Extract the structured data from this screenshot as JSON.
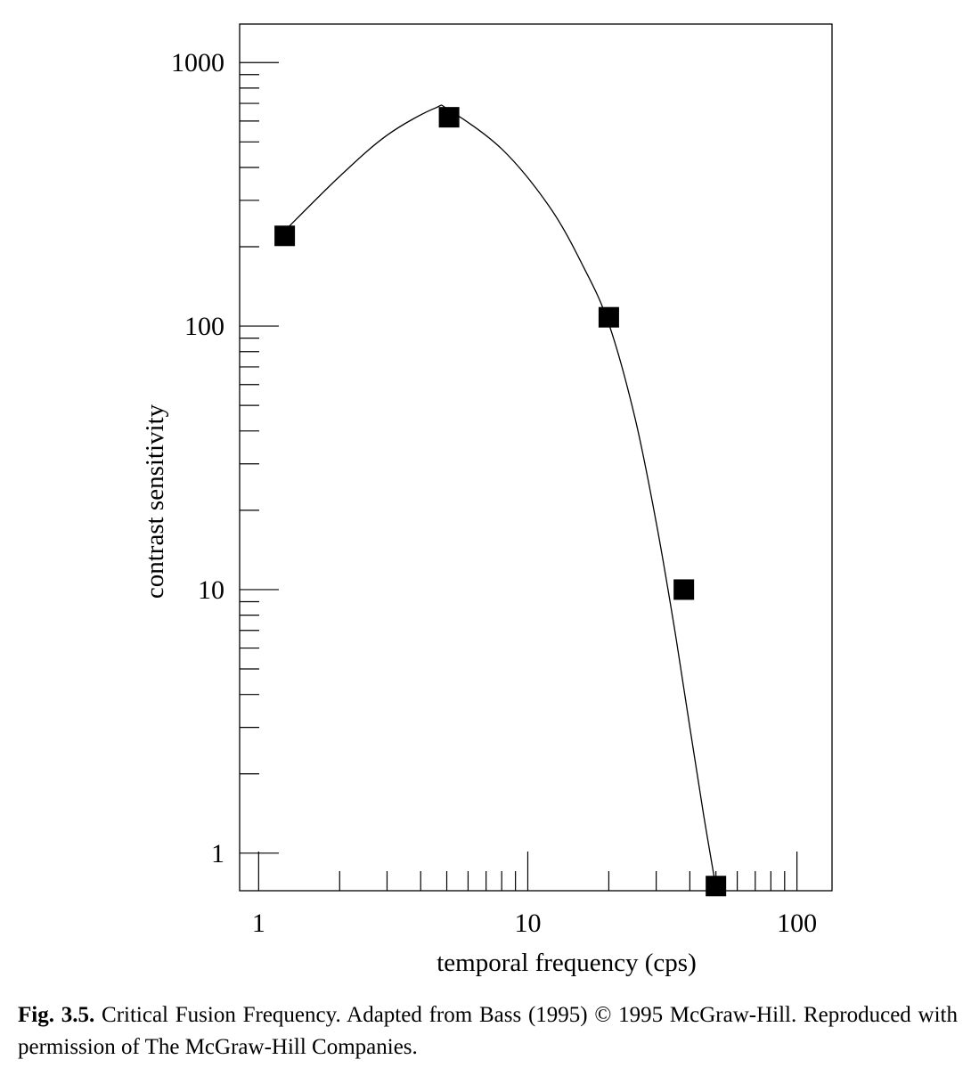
{
  "chart_data": {
    "type": "scatter",
    "x_scale": "log",
    "y_scale": "log",
    "xlabel": "temporal frequency (cps)",
    "ylabel": "contrast sensitivity",
    "xlim": [
      0.85,
      135
    ],
    "ylim": [
      0.72,
      1400
    ],
    "x_ticks": [
      1,
      10,
      100
    ],
    "x_tick_labels": [
      "1",
      "10",
      "100"
    ],
    "y_ticks": [
      1,
      10,
      100,
      1000
    ],
    "y_tick_labels": [
      "1",
      "10",
      "100",
      "1000"
    ],
    "grid": false,
    "series": [
      {
        "points": [
          {
            "x": 1.25,
            "y": 220
          },
          {
            "x": 5.1,
            "y": 620
          },
          {
            "x": 20,
            "y": 108
          },
          {
            "x": 38,
            "y": 10
          },
          {
            "x": 50,
            "y": 0.75
          }
        ]
      }
    ],
    "fit_curve": {
      "x": [
        1.25,
        2.0,
        3.0,
        4.5,
        5.1,
        8.0,
        12,
        16,
        20,
        25,
        30,
        35,
        40,
        45,
        50
      ],
      "y": [
        230,
        370,
        530,
        670,
        660,
        470,
        285,
        170,
        102,
        45,
        18,
        7.2,
        3.0,
        1.4,
        0.74
      ]
    }
  },
  "caption": {
    "label": "Fig. 3.5.",
    "text": " Critical Fusion Frequency. Adapted from Bass (1995) © 1995 McGraw-Hill. Reproduced with permission of The McGraw-Hill Companies."
  }
}
